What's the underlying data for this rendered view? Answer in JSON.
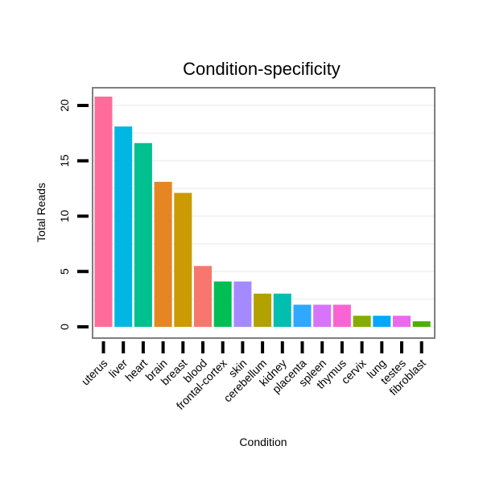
{
  "chart_data": {
    "type": "bar",
    "title": "Condition-specificity",
    "xlabel": "Condition",
    "ylabel": "Total Reads",
    "ylim": [
      -0.8,
      21.7
    ],
    "yticks": [
      0,
      5,
      10,
      15,
      20
    ],
    "grid": true,
    "categories": [
      "uterus",
      "liver",
      "heart",
      "brain",
      "breast",
      "blood",
      "frontal-cortex",
      "skin",
      "cerebellum",
      "kidney",
      "placenta",
      "spleen",
      "thymus",
      "cervix",
      "lung",
      "testes",
      "fibroblast"
    ],
    "values": [
      20.8,
      18.1,
      16.6,
      13.1,
      12.1,
      5.5,
      4.1,
      4.1,
      3.0,
      3.0,
      2.0,
      2.0,
      2.0,
      1.0,
      1.0,
      1.0,
      0.5
    ],
    "colors": [
      "#FF6C9C",
      "#00B7E3",
      "#00C08D",
      "#E58623",
      "#CC9A02",
      "#F8766D",
      "#00BE53",
      "#A58AFF",
      "#B3A100",
      "#00BFB0",
      "#2FA8FF",
      "#D774FA",
      "#F964D3",
      "#84AD00",
      "#00A9FF",
      "#EC69EF",
      "#4DB100"
    ]
  }
}
